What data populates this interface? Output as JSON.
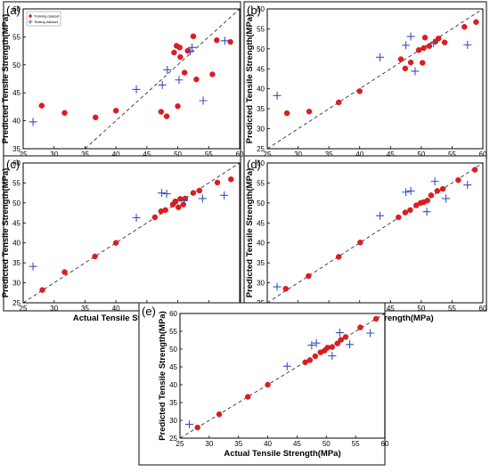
{
  "colors": {
    "training": "#e41a1c",
    "testing": "#3b4fc4",
    "diagonal": "#333333",
    "frame": "#333333"
  },
  "legend": {
    "training_label": "Training dataset",
    "testing_label": "Testing dataset"
  },
  "chart_data": [
    {
      "type": "scatter",
      "panel_label": "(a)",
      "xlabel": "Actual Tensile Strength(MPa)",
      "ylabel": "Predicted Tensile Strength(MPa)",
      "xlim": [
        25,
        60
      ],
      "ylim": [
        35,
        60
      ],
      "xticks": [
        25,
        30,
        35,
        40,
        45,
        50,
        55,
        60
      ],
      "yticks": [
        35,
        40,
        45,
        50,
        55,
        60
      ],
      "legend_position": "top-left",
      "diagonal": true,
      "series": [
        {
          "name": "Training dataset",
          "marker": "circle",
          "points": [
            [
              28,
              42.7
            ],
            [
              31.7,
              41.4
            ],
            [
              36.7,
              40.6
            ],
            [
              40,
              41.8
            ],
            [
              47.3,
              41.6
            ],
            [
              48.2,
              40.8
            ],
            [
              49.4,
              52.2
            ],
            [
              49.8,
              53.4
            ],
            [
              50,
              42.6
            ],
            [
              50.3,
              53.1
            ],
            [
              50.4,
              51.4
            ],
            [
              51.1,
              48.6
            ],
            [
              51.6,
              52.5
            ],
            [
              52.5,
              55.1
            ],
            [
              53,
              47.4
            ],
            [
              55.6,
              48.3
            ],
            [
              56.3,
              54.4
            ],
            [
              58.5,
              54.1
            ]
          ]
        },
        {
          "name": "Testing dataset",
          "marker": "plus",
          "points": [
            [
              26.6,
              39.8
            ],
            [
              43.3,
              45.6
            ],
            [
              47.5,
              46.4
            ],
            [
              48.3,
              49.1
            ],
            [
              50.2,
              47.3
            ],
            [
              52,
              52.4
            ],
            [
              52.3,
              53.1
            ],
            [
              54.1,
              43.6
            ],
            [
              57.6,
              54.3
            ]
          ]
        }
      ]
    },
    {
      "type": "scatter",
      "panel_label": "(b)",
      "xlabel": "Actual Tensile Strength(MPa)",
      "ylabel": "Predicted Tensile Strength(MPa)",
      "xlim": [
        25,
        60
      ],
      "ylim": [
        25,
        60
      ],
      "xticks": [
        25,
        30,
        35,
        40,
        45,
        50,
        55,
        60
      ],
      "yticks": [
        25,
        30,
        35,
        40,
        45,
        50,
        55,
        60
      ],
      "diagonal": true,
      "series": [
        {
          "name": "Training dataset",
          "marker": "circle",
          "points": [
            [
              28.2,
              33.9
            ],
            [
              31.8,
              34.3
            ],
            [
              36.6,
              36.6
            ],
            [
              40,
              39.4
            ],
            [
              46.7,
              47.4
            ],
            [
              47.4,
              45.1
            ],
            [
              48.3,
              46.6
            ],
            [
              49.6,
              49.7
            ],
            [
              50.2,
              46.5
            ],
            [
              50.4,
              50.2
            ],
            [
              50.6,
              52.8
            ],
            [
              51.3,
              50.7
            ],
            [
              52.3,
              51.8
            ],
            [
              52.8,
              52.6
            ],
            [
              53.8,
              51.6
            ],
            [
              57,
              55.5
            ],
            [
              58.9,
              56.7
            ]
          ]
        },
        {
          "name": "Testing dataset",
          "marker": "plus",
          "points": [
            [
              26.6,
              38.3
            ],
            [
              43.3,
              47.9
            ],
            [
              47.5,
              50.9
            ],
            [
              48.3,
              53.1
            ],
            [
              49,
              44.4
            ],
            [
              52,
              51.4
            ],
            [
              57.5,
              51
            ]
          ]
        }
      ]
    },
    {
      "type": "scatter",
      "panel_label": "(c)",
      "xlabel": "Actual Tensile Strength(MPa)",
      "ylabel": "Predicted Tensile Strength(MPa)",
      "xlim": [
        25,
        60
      ],
      "ylim": [
        25,
        60
      ],
      "xticks": [
        25,
        30,
        35,
        40,
        45,
        50,
        55,
        60
      ],
      "yticks": [
        25,
        30,
        35,
        40,
        45,
        50,
        55,
        60
      ],
      "diagonal": true,
      "series": [
        {
          "name": "Training dataset",
          "marker": "circle",
          "points": [
            [
              28.1,
              28.2
            ],
            [
              31.7,
              32.7
            ],
            [
              36.6,
              36.6
            ],
            [
              40,
              40
            ],
            [
              46.3,
              46.4
            ],
            [
              47.3,
              47.9
            ],
            [
              48,
              48.2
            ],
            [
              49.2,
              49.6
            ],
            [
              49.6,
              50.4
            ],
            [
              50.1,
              48.9
            ],
            [
              50.4,
              51
            ],
            [
              50.9,
              49.6
            ],
            [
              51.2,
              51.1
            ],
            [
              52.5,
              52.5
            ],
            [
              53.5,
              53.1
            ],
            [
              56.4,
              55.1
            ],
            [
              58.6,
              55.9
            ]
          ]
        },
        {
          "name": "Testing dataset",
          "marker": "plus",
          "points": [
            [
              26.6,
              34.1
            ],
            [
              43.3,
              46.3
            ],
            [
              47.4,
              52.5
            ],
            [
              48.2,
              52.3
            ],
            [
              51,
              50.6
            ],
            [
              54,
              51.1
            ],
            [
              57.5,
              51.9
            ]
          ]
        }
      ]
    },
    {
      "type": "scatter",
      "panel_label": "(d)",
      "xlabel": "Actual Tensile Strength(MPa)",
      "ylabel": "Predicted Tensile Strength(MPa)",
      "xlim": [
        25,
        60
      ],
      "ylim": [
        25,
        60
      ],
      "xticks": [
        25,
        30,
        35,
        40,
        45,
        50,
        55,
        60
      ],
      "yticks": [
        25,
        30,
        35,
        40,
        45,
        50,
        55,
        60
      ],
      "diagonal": true,
      "series": [
        {
          "name": "Training dataset",
          "marker": "circle",
          "points": [
            [
              28,
              28.5
            ],
            [
              31.7,
              31.7
            ],
            [
              36.6,
              36.5
            ],
            [
              40.1,
              40.1
            ],
            [
              46.3,
              46.4
            ],
            [
              47.4,
              47.6
            ],
            [
              48.2,
              48.2
            ],
            [
              49.2,
              49.4
            ],
            [
              49.9,
              50
            ],
            [
              50.4,
              50.2
            ],
            [
              51,
              50.6
            ],
            [
              51.6,
              51.9
            ],
            [
              52.6,
              53
            ],
            [
              53.5,
              53.5
            ],
            [
              56,
              55.7
            ],
            [
              58.7,
              58.3
            ]
          ]
        },
        {
          "name": "Testing dataset",
          "marker": "plus",
          "points": [
            [
              26.6,
              29
            ],
            [
              43.3,
              46.8
            ],
            [
              47.5,
              52.7
            ],
            [
              48.3,
              53
            ],
            [
              50.9,
              47.8
            ],
            [
              52.2,
              55.4
            ],
            [
              54,
              51.1
            ],
            [
              57.5,
              54.5
            ]
          ]
        }
      ]
    },
    {
      "type": "scatter",
      "panel_label": "(e)",
      "xlabel": "Actual Tensile Strength(MPa)",
      "ylabel": "Predicted Tensile Strength(MPa)",
      "xlim": [
        25,
        60
      ],
      "ylim": [
        25,
        60
      ],
      "xticks": [
        25,
        30,
        35,
        40,
        45,
        50,
        55,
        60
      ],
      "yticks": [
        25,
        30,
        35,
        40,
        45,
        50,
        55,
        60
      ],
      "diagonal": true,
      "series": [
        {
          "name": "Training dataset",
          "marker": "circle",
          "points": [
            [
              28,
              28
            ],
            [
              31.7,
              31.7
            ],
            [
              36.6,
              36.6
            ],
            [
              40,
              40
            ],
            [
              46.4,
              46.3
            ],
            [
              47.2,
              46.9
            ],
            [
              48.1,
              48
            ],
            [
              49,
              49.1
            ],
            [
              49.7,
              49.6
            ],
            [
              50.2,
              50.4
            ],
            [
              51,
              50.6
            ],
            [
              51.9,
              51.6
            ],
            [
              52.5,
              52.6
            ],
            [
              53.3,
              53.4
            ],
            [
              55.8,
              56.1
            ],
            [
              58.5,
              58.5
            ]
          ]
        },
        {
          "name": "Testing dataset",
          "marker": "plus",
          "points": [
            [
              26.6,
              28.9
            ],
            [
              43.3,
              45.2
            ],
            [
              47.5,
              51.1
            ],
            [
              48.3,
              51.7
            ],
            [
              51,
              48.1
            ],
            [
              52.3,
              54.6
            ],
            [
              54,
              51.3
            ],
            [
              57.5,
              54.5
            ]
          ]
        }
      ]
    }
  ]
}
